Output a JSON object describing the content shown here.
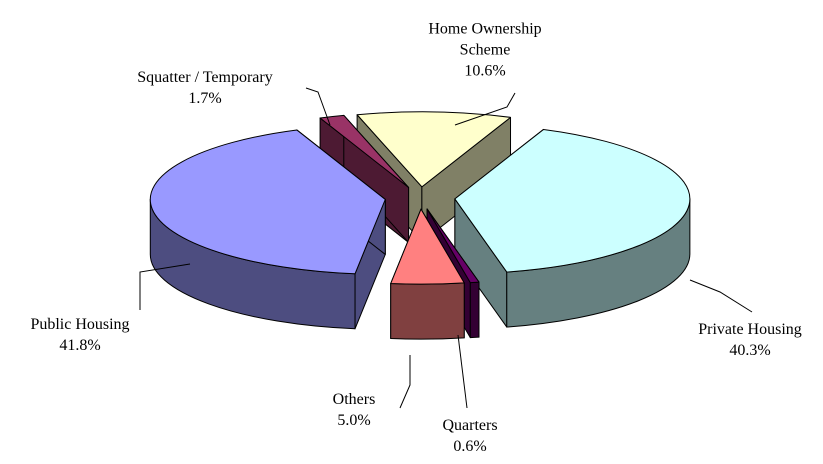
{
  "chart_data": {
    "type": "pie3d",
    "categories": [
      "Home Ownership Scheme",
      "Private Housing",
      "Quarters",
      "Others",
      "Public Housing",
      "Squatter / Temporary"
    ],
    "values": [
      10.6,
      40.3,
      0.6,
      5.0,
      41.8,
      1.7
    ],
    "value_labels": [
      "10.6%",
      "40.3%",
      "0.6%",
      "5.0%",
      "41.8%",
      "1.7%"
    ],
    "colors": [
      "#ffffcc",
      "#ccffff",
      "#660066",
      "#ff8080",
      "#9999ff",
      "#993366"
    ]
  }
}
